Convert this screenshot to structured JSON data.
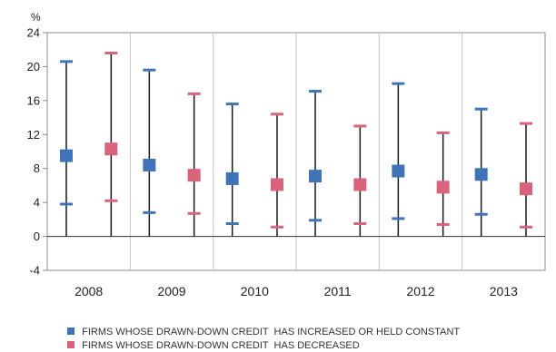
{
  "chart_data": {
    "type": "range",
    "unit": "%",
    "categories": [
      "2008",
      "2009",
      "2010",
      "2011",
      "2012",
      "2013"
    ],
    "ylim": [
      -4,
      24
    ],
    "yticks": [
      -4,
      0,
      4,
      8,
      12,
      16,
      20,
      24
    ],
    "grid": false,
    "legend_position": "bottom",
    "series": [
      {
        "name": "FIRMS WHOSE DRAWN-DOWN CREDIT  HAS INCREASED OR HELD CONSTANT",
        "color": "#3f74b8",
        "central": [
          9.5,
          8.4,
          6.8,
          7.1,
          7.7,
          7.3
        ],
        "high": [
          20.6,
          19.6,
          15.6,
          17.1,
          18.0,
          15.0
        ],
        "low": [
          3.8,
          2.8,
          1.5,
          1.9,
          2.1,
          2.6
        ]
      },
      {
        "name": "FIRMS WHOSE DRAWN-DOWN CREDIT  HAS DECREASED",
        "color": "#d9637a",
        "central": [
          10.3,
          7.2,
          6.1,
          6.1,
          5.8,
          5.6
        ],
        "high": [
          21.6,
          16.8,
          14.4,
          13.0,
          12.2,
          13.3
        ],
        "low": [
          4.2,
          2.7,
          1.1,
          1.5,
          1.4,
          1.1
        ]
      }
    ]
  }
}
